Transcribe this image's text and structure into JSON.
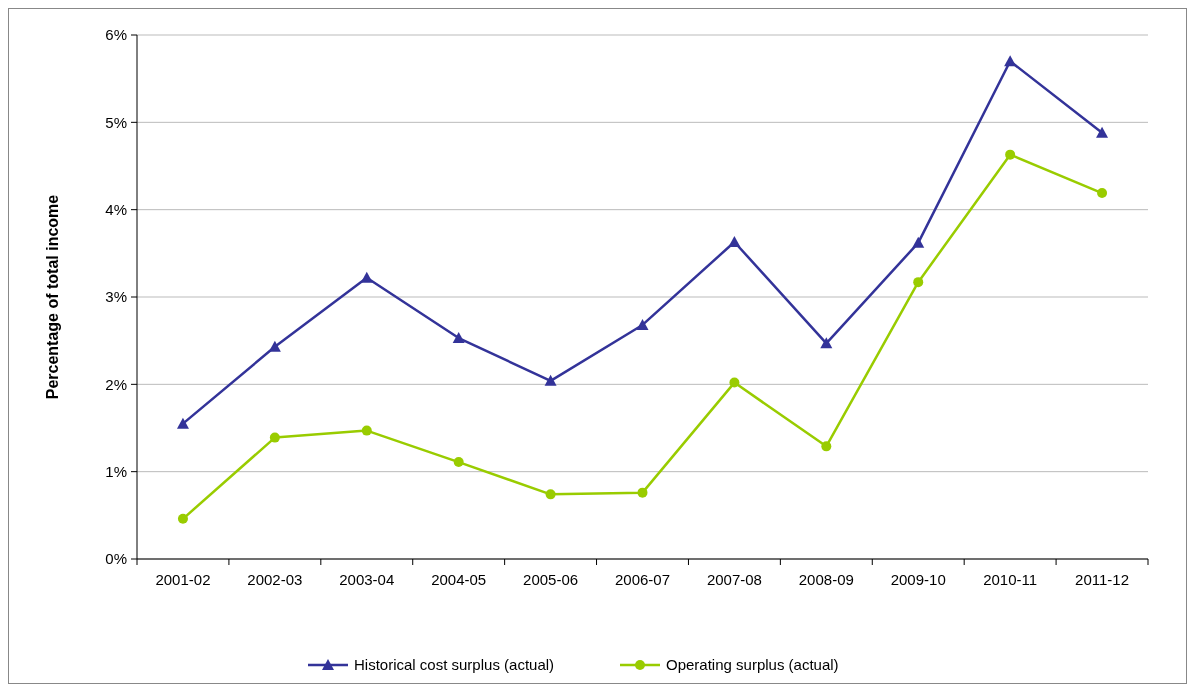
{
  "chart_data": {
    "type": "line",
    "ylabel": "Percentage of total income",
    "categories": [
      "2001-02",
      "2002-03",
      "2003-04",
      "2004-05",
      "2005-06",
      "2006-07",
      "2007-08",
      "2008-09",
      "2009-10",
      "2010-11",
      "2011-12"
    ],
    "series": [
      {
        "name": "Historical cost surplus (actual)",
        "color": "#333399",
        "marker": "triangle",
        "values": [
          1.55,
          2.43,
          3.22,
          2.53,
          2.04,
          2.68,
          3.63,
          2.47,
          3.62,
          5.7,
          4.88
        ]
      },
      {
        "name": "Operating surplus (actual)",
        "color": "#99cc00",
        "marker": "circle",
        "values": [
          0.46,
          1.39,
          1.47,
          1.11,
          0.74,
          0.76,
          2.02,
          1.29,
          3.17,
          4.63,
          4.19
        ]
      }
    ],
    "ylim": [
      0,
      6
    ],
    "yticks": [
      {
        "value": 0,
        "label": "0%"
      },
      {
        "value": 1,
        "label": "1%"
      },
      {
        "value": 2,
        "label": "2%"
      },
      {
        "value": 3,
        "label": "3%"
      },
      {
        "value": 4,
        "label": "4%"
      },
      {
        "value": 5,
        "label": "5%"
      },
      {
        "value": 6,
        "label": "6%"
      }
    ],
    "grid": "y",
    "legend": "bottom",
    "line_style": "solid"
  }
}
